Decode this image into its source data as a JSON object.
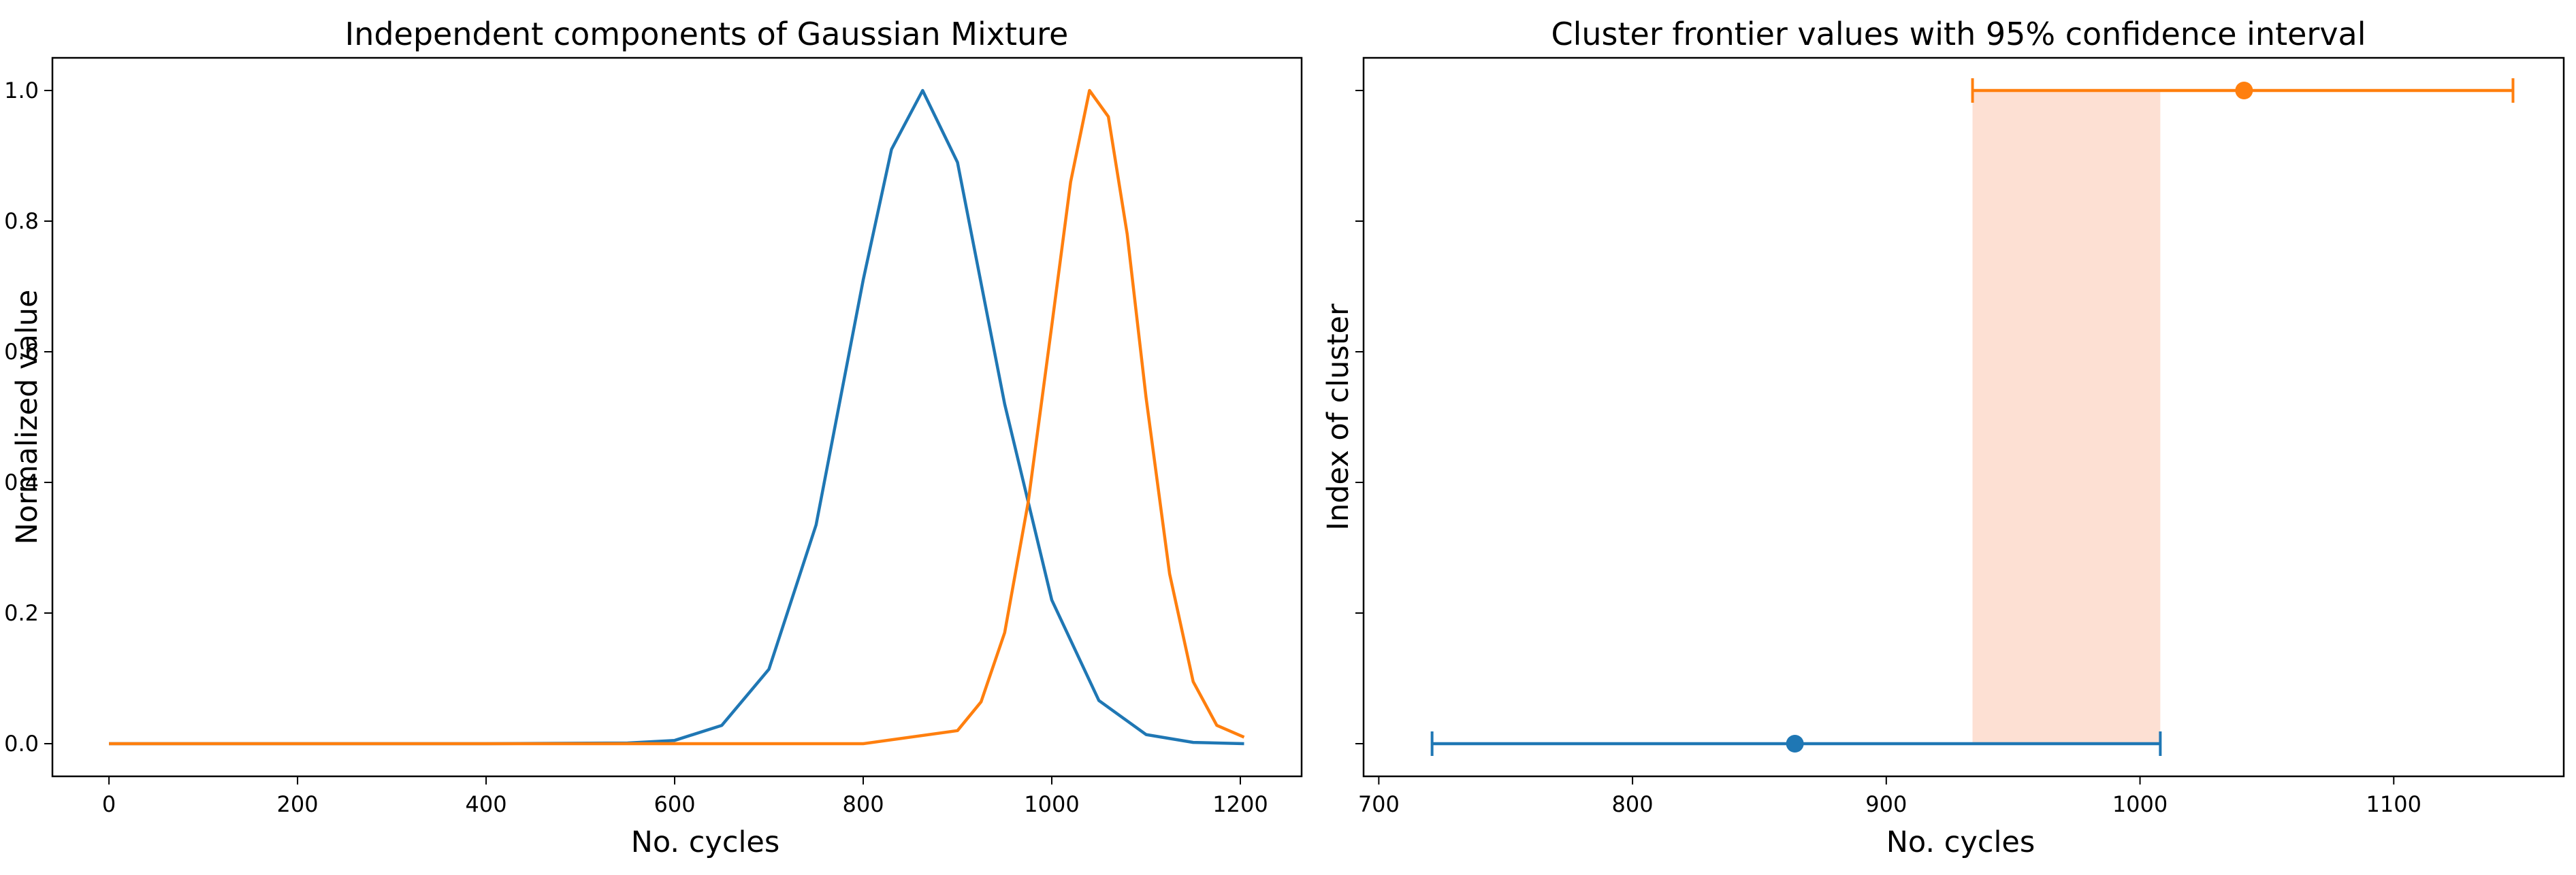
{
  "chart_data": [
    {
      "type": "line",
      "title": "Independent components of Gaussian Mixture",
      "xlabel": "No. cycles",
      "ylabel": "Normalized value",
      "xlim": [
        -60,
        1265
      ],
      "ylim": [
        -0.05,
        1.05
      ],
      "xticks": [
        0,
        200,
        400,
        600,
        800,
        1000,
        1200
      ],
      "yticks": [
        0.0,
        0.2,
        0.4,
        0.6,
        0.8,
        1.0
      ],
      "xtick_labels": [
        "0",
        "200",
        "400",
        "600",
        "800",
        "1000",
        "1200"
      ],
      "ytick_labels": [
        "0.0",
        "0.2",
        "0.4",
        "0.6",
        "0.8",
        "1.0"
      ],
      "grid": false,
      "series": [
        {
          "color": "#1f77b4",
          "x": [
            0,
            200,
            400,
            550,
            600,
            650,
            700,
            750,
            800,
            830,
            863,
            900,
            950,
            1000,
            1050,
            1100,
            1150,
            1204
          ],
          "y": [
            0.0,
            0.0,
            0.0,
            0.001,
            0.005,
            0.028,
            0.114,
            0.335,
            0.71,
            0.91,
            1.0,
            0.89,
            0.52,
            0.22,
            0.066,
            0.014,
            0.002,
            0.0
          ]
        },
        {
          "color": "#ff7f0e",
          "x": [
            0,
            200,
            400,
            600,
            800,
            900,
            925,
            950,
            975,
            1000,
            1020,
            1040,
            1060,
            1080,
            1100,
            1125,
            1150,
            1175,
            1204
          ],
          "y": [
            0.0,
            0.0,
            0.0,
            0.0,
            0.0,
            0.02,
            0.064,
            0.17,
            0.37,
            0.64,
            0.86,
            1.0,
            0.96,
            0.78,
            0.53,
            0.26,
            0.095,
            0.028,
            0.01
          ]
        }
      ]
    },
    {
      "type": "scatter",
      "title": "Cluster frontier values with 95% confidence interval",
      "xlabel": "No. cycles",
      "ylabel": "Index of cluster",
      "xlim": [
        694,
        1167
      ],
      "ylim": [
        -0.05,
        1.05
      ],
      "xticks": [
        700,
        800,
        900,
        1000,
        1100
      ],
      "xtick_labels": [
        "700",
        "800",
        "900",
        "1000",
        "1100"
      ],
      "yticks": [
        0.0,
        0.2,
        0.4,
        0.6,
        0.8,
        1.0
      ],
      "grid": false,
      "series": [
        {
          "color": "#1f77b4",
          "x": 864,
          "y": 0,
          "xerr_low": 721,
          "xerr_high": 1008
        },
        {
          "color": "#ff7f0e",
          "x": 1041,
          "y": 1,
          "xerr_low": 934,
          "xerr_high": 1147
        }
      ],
      "shaded_region": {
        "x_start": 934,
        "x_end": 1008,
        "color": "#fde0d3"
      }
    }
  ]
}
